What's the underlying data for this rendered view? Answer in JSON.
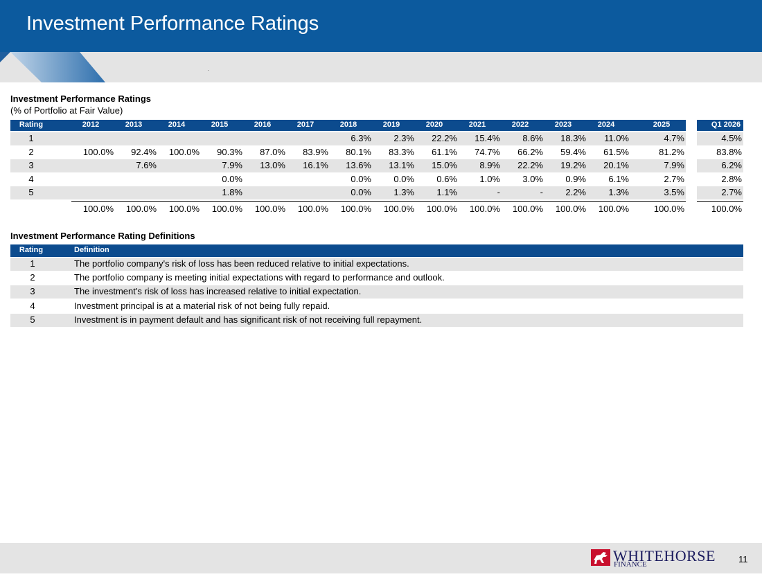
{
  "header": {
    "title": "Investment Performance Ratings"
  },
  "ratings_table": {
    "title": "Investment Performance Ratings",
    "subtitle": "(% of Portfolio at Fair Value)",
    "rating_header": "Rating",
    "columns": [
      "2012",
      "2013",
      "2014",
      "2015",
      "2016",
      "2017",
      "2018",
      "2019",
      "2020",
      "2021",
      "2022",
      "2023",
      "2024",
      "2025",
      "Q1 2026"
    ],
    "rows": [
      {
        "rating": "1",
        "values": [
          "",
          "",
          "",
          "",
          "",
          "",
          "6.3%",
          "2.3%",
          "22.2%",
          "15.4%",
          "8.6%",
          "18.3%",
          "11.0%",
          "4.7%",
          "4.5%"
        ]
      },
      {
        "rating": "2",
        "values": [
          "100.0%",
          "92.4%",
          "100.0%",
          "90.3%",
          "87.0%",
          "83.9%",
          "80.1%",
          "83.3%",
          "61.1%",
          "74.7%",
          "66.2%",
          "59.4%",
          "61.5%",
          "81.2%",
          "83.8%"
        ]
      },
      {
        "rating": "3",
        "values": [
          "",
          "7.6%",
          "",
          "7.9%",
          "13.0%",
          "16.1%",
          "13.6%",
          "13.1%",
          "15.0%",
          "8.9%",
          "22.2%",
          "19.2%",
          "20.1%",
          "7.9%",
          "6.2%"
        ]
      },
      {
        "rating": "4",
        "values": [
          "",
          "",
          "",
          "0.0%",
          "",
          "",
          "0.0%",
          "0.0%",
          "0.6%",
          "1.0%",
          "3.0%",
          "0.9%",
          "6.1%",
          "2.7%",
          "2.8%"
        ]
      },
      {
        "rating": "5",
        "values": [
          "",
          "",
          "",
          "1.8%",
          "",
          "",
          "0.0%",
          "1.3%",
          "1.1%",
          "-",
          "-",
          "2.2%",
          "1.3%",
          "3.5%",
          "2.7%"
        ]
      }
    ],
    "totals": [
      "100.0%",
      "100.0%",
      "100.0%",
      "100.0%",
      "100.0%",
      "100.0%",
      "100.0%",
      "100.0%",
      "100.0%",
      "100.0%",
      "100.0%",
      "100.0%",
      "100.0%",
      "100.0%",
      "100.0%"
    ]
  },
  "definitions_table": {
    "title": "Investment Performance Rating Definitions",
    "rating_header": "Rating",
    "definition_header": "Definition",
    "rows": [
      {
        "rating": "1",
        "definition": "The portfolio company's risk of loss has been reduced relative to initial expectations."
      },
      {
        "rating": "2",
        "definition": "The portfolio company is meeting initial expectations with regard to performance and outlook."
      },
      {
        "rating": "3",
        "definition": "The investment's risk of loss has increased relative to initial expectation."
      },
      {
        "rating": "4",
        "definition": "Investment principal is at a material risk of not being fully repaid."
      },
      {
        "rating": "5",
        "definition": "Investment is in payment default and has significant risk of not receiving full repayment."
      }
    ]
  },
  "footer": {
    "logo_name": "WHITEHORSE",
    "logo_sub": "FINANCE",
    "page_number": "11"
  },
  "colors": {
    "header_blue": "#0C5A9E",
    "table_header": "#0C4B8E",
    "shade": "#E4E4E4",
    "logo_red": "#C8102E"
  }
}
